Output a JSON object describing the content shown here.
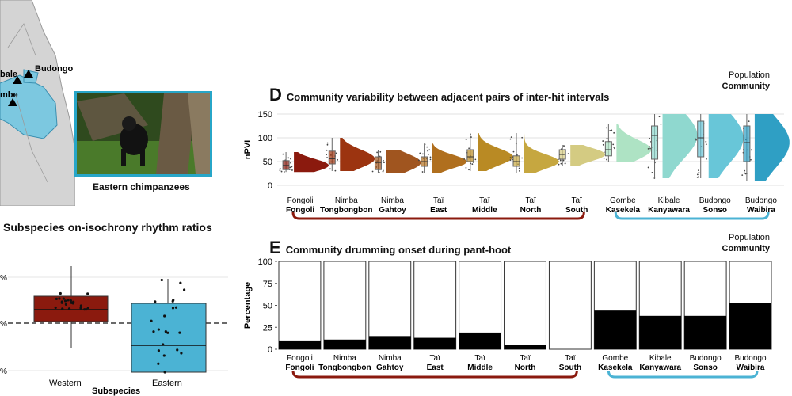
{
  "map": {
    "labels": [
      "Budongo",
      "bale",
      "mbe"
    ]
  },
  "photo": {
    "caption": "Eastern chimpanzees"
  },
  "panel_c": {
    "title": "Subspecies on-isochrony rhythm ratios",
    "ytick_labels": [
      "%",
      "%",
      "%"
    ],
    "xlabel": "Subspecies",
    "categories": [
      "Western",
      "Eastern"
    ],
    "colors": {
      "Western": "#8b1a0e",
      "Eastern": "#4bb3d4"
    }
  },
  "panel_d": {
    "letter": "D",
    "title": "Community variability between adjacent pairs of inter-hit intervals",
    "legend": {
      "line1": "Population",
      "line2": "Community"
    }
  },
  "panel_e": {
    "letter": "E",
    "title": "Community drumming onset during pant-hoot",
    "legend": {
      "line1": "Population",
      "line2": "Community"
    }
  },
  "chart_data": [
    {
      "type": "box",
      "id": "C",
      "title": "Subspecies on-isochrony rhythm ratios",
      "xlabel": "Subspecies",
      "categories": [
        "Western",
        "Eastern"
      ],
      "boxes": [
        {
          "name": "Western",
          "q1": 0.62,
          "median": 0.68,
          "q3": 0.75,
          "whisker_low": 0.47,
          "whisker_high": 0.93
        },
        {
          "name": "Eastern",
          "q1": 0.0,
          "median": 0.27,
          "q3": 0.73,
          "whisker_low": 0.0,
          "whisker_high": 0.93
        }
      ],
      "reference_line": "dashed horizontal"
    },
    {
      "type": "violin-box",
      "id": "D",
      "title": "Community variability between adjacent pairs of inter-hit intervals",
      "ylabel": "nPVI",
      "ylim": [
        0,
        150
      ],
      "yticks": [
        0,
        50,
        100,
        150
      ],
      "groups": [
        {
          "population": "Fongoli",
          "community": "Fongoli",
          "q1": 33,
          "median": 42,
          "q3": 52,
          "whisker_low": 28,
          "whisker_high": 70,
          "color": "#8b1a0e"
        },
        {
          "population": "Nimba",
          "community": "Tongbongbon",
          "q1": 45,
          "median": 56,
          "q3": 72,
          "whisker_low": 30,
          "whisker_high": 100,
          "color": "#9c3410"
        },
        {
          "population": "Nimba",
          "community": "Gahtoy",
          "q1": 33,
          "median": 48,
          "q3": 60,
          "whisker_low": 25,
          "whisker_high": 75,
          "color": "#a0551f"
        },
        {
          "population": "Taï",
          "community": "East",
          "q1": 40,
          "median": 50,
          "q3": 60,
          "whisker_low": 25,
          "whisker_high": 88,
          "color": "#b06f1e"
        },
        {
          "population": "Taï",
          "community": "Middle",
          "q1": 50,
          "median": 60,
          "q3": 75,
          "whisker_low": 30,
          "whisker_high": 110,
          "color": "#b98a24"
        },
        {
          "population": "Taï",
          "community": "North",
          "q1": 40,
          "median": 50,
          "q3": 62,
          "whisker_low": 25,
          "whisker_high": 110,
          "color": "#c6a740"
        },
        {
          "population": "Taï",
          "community": "South",
          "q1": 55,
          "median": 65,
          "q3": 75,
          "whisker_low": 40,
          "whisker_high": 85,
          "color": "#d4cb82"
        },
        {
          "population": "Gombe",
          "community": "Kasekela",
          "q1": 62,
          "median": 75,
          "q3": 92,
          "whisker_low": 50,
          "whisker_high": 130,
          "color": "#aee3c4"
        },
        {
          "population": "Kibale",
          "community": "Kanyawara",
          "q1": 55,
          "median": 105,
          "q3": 125,
          "whisker_low": 15,
          "whisker_high": 150,
          "color": "#8fd8cf"
        },
        {
          "population": "Budongo",
          "community": "Sonso",
          "q1": 60,
          "median": 100,
          "q3": 135,
          "whisker_low": 15,
          "whisker_high": 150,
          "color": "#68c6d8"
        },
        {
          "population": "Budongo",
          "community": "Waibira",
          "q1": 50,
          "median": 90,
          "q3": 125,
          "whisker_low": 10,
          "whisker_high": 150,
          "color": "#2f9fc4"
        }
      ],
      "brackets": [
        {
          "from": 0,
          "to": 6,
          "color": "#8b1a0e"
        },
        {
          "from": 7,
          "to": 10,
          "color": "#4bb3d4"
        }
      ]
    },
    {
      "type": "bar",
      "id": "E",
      "title": "Community drumming onset during pant-hoot",
      "ylabel": "Percentage",
      "ylim": [
        0,
        100
      ],
      "yticks": [
        0,
        25,
        50,
        75,
        100
      ],
      "categories": [
        {
          "population": "Fongoli",
          "community": "Fongoli"
        },
        {
          "population": "Nimba",
          "community": "Tongbongbon"
        },
        {
          "population": "Nimba",
          "community": "Gahtoy"
        },
        {
          "population": "Taï",
          "community": "East"
        },
        {
          "population": "Taï",
          "community": "Middle"
        },
        {
          "population": "Taï",
          "community": "North"
        },
        {
          "population": "Taï",
          "community": "South"
        },
        {
          "population": "Gombe",
          "community": "Kasekela"
        },
        {
          "population": "Kibale",
          "community": "Kanyawara"
        },
        {
          "population": "Budongo",
          "community": "Sonso"
        },
        {
          "population": "Budongo",
          "community": "Waibira"
        }
      ],
      "values": [
        10,
        11,
        15,
        13,
        19,
        5,
        0,
        44,
        38,
        38,
        53
      ],
      "brackets": [
        {
          "from": 0,
          "to": 6,
          "color": "#8b1a0e"
        },
        {
          "from": 7,
          "to": 10,
          "color": "#4bb3d4"
        }
      ]
    }
  ]
}
